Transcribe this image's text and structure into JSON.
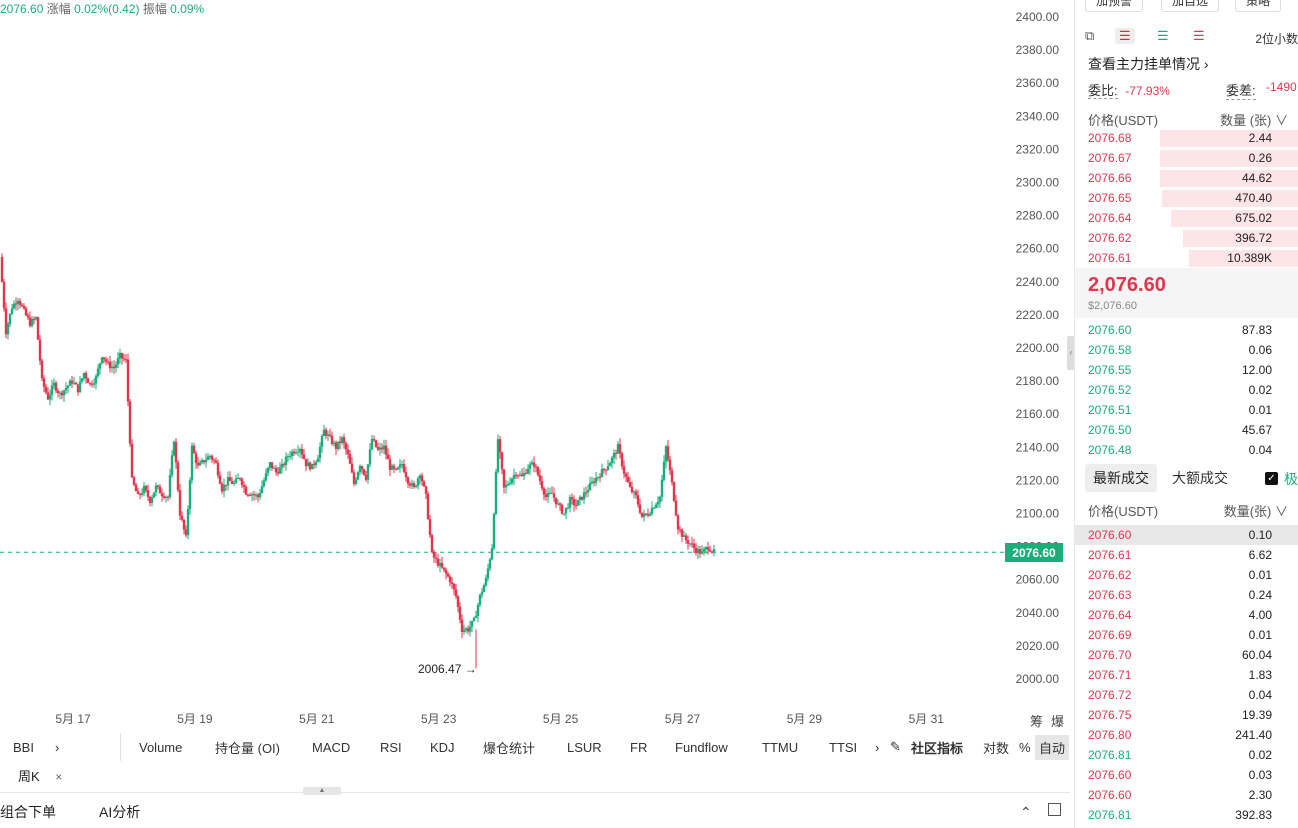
{
  "header": {
    "last_price": "2076.60",
    "change_label": "涨幅",
    "change_value": "0.02%(0.42)",
    "amp_label": "振幅",
    "amp_value": "0.09%"
  },
  "chart": {
    "current_price_tag": "2076.60",
    "low_label": "2006.47 →",
    "chip_flags": "筹爆"
  },
  "chart_data": {
    "type": "candlestick",
    "y_ticks": [
      "2400.00",
      "2380.00",
      "2360.00",
      "2340.00",
      "2320.00",
      "2300.00",
      "2280.00",
      "2260.00",
      "2240.00",
      "2220.00",
      "2200.00",
      "2180.00",
      "2160.00",
      "2140.00",
      "2120.00",
      "2100.00",
      "2080.00",
      "2060.00",
      "2040.00",
      "2020.00",
      "2000.00"
    ],
    "ylim": [
      2000,
      2400
    ],
    "x_ticks": [
      "5月 17",
      "5月 19",
      "5月 21",
      "5月 23",
      "5月 25",
      "5月 27",
      "5月 29",
      "5月 31"
    ],
    "current_price": 2076.6,
    "low": 2006.47,
    "close_path": [
      2255,
      2210,
      2225,
      2230,
      2222,
      2215,
      2218,
      2180,
      2170,
      2178,
      2172,
      2176,
      2180,
      2175,
      2185,
      2178,
      2182,
      2196,
      2190,
      2188,
      2195,
      2192,
      2120,
      2110,
      2115,
      2108,
      2116,
      2112,
      2110,
      2145,
      2100,
      2085,
      2140,
      2128,
      2132,
      2135,
      2130,
      2115,
      2120,
      2118,
      2122,
      2113,
      2112,
      2110,
      2120,
      2130,
      2125,
      2128,
      2135,
      2138,
      2140,
      2130,
      2128,
      2135,
      2150,
      2145,
      2140,
      2145,
      2135,
      2118,
      2130,
      2122,
      2145,
      2138,
      2140,
      2128,
      2125,
      2130,
      2120,
      2115,
      2125,
      2110,
      2075,
      2070,
      2065,
      2060,
      2050,
      2030,
      2030,
      2035,
      2050,
      2060,
      2080,
      2145,
      2115,
      2120,
      2125,
      2122,
      2128,
      2130,
      2120,
      2110,
      2112,
      2105,
      2100,
      2108,
      2105,
      2110,
      2115,
      2120,
      2124,
      2128,
      2133,
      2140,
      2125,
      2115,
      2110,
      2098,
      2100,
      2105,
      2110,
      2140,
      2118,
      2092,
      2085,
      2082,
      2078,
      2076,
      2080,
      2076.6
    ]
  },
  "indicators": [
    "BBI",
    "Volume",
    "持仓量 (OI)",
    "MACD",
    "RSI",
    "KDJ",
    "爆仓统计",
    "LSUR",
    "FR",
    "Fundflow",
    "TTMU",
    "TTSI"
  ],
  "indicator_extras": {
    "more": "›",
    "community": "社区指标",
    "log": "对数",
    "pct": "%",
    "auto": "自动"
  },
  "period": {
    "label": "周K",
    "close": "×"
  },
  "bottom_tabs": {
    "combo_order": "组合下单",
    "ai_analysis": "AI分析"
  },
  "right_panel": {
    "top_buttons": [
      "加预警",
      "加自选",
      "策略"
    ],
    "decimals": "2位小数",
    "view_main": "查看主力挂单情况 ›",
    "ratio_label": "委比:",
    "ratio_value": "-77.93%",
    "diff_label": "委差:",
    "diff_value": "-1490",
    "book_header_price": "价格(USDT)",
    "book_header_qty": "数量 (张) ∨",
    "asks": [
      {
        "price": "2076.68",
        "qty": "2.44",
        "depth": 0.62
      },
      {
        "price": "2076.67",
        "qty": "0.26",
        "depth": 0.62
      },
      {
        "price": "2076.66",
        "qty": "44.62",
        "depth": 0.62
      },
      {
        "price": "2076.65",
        "qty": "470.40",
        "depth": 0.61
      },
      {
        "price": "2076.64",
        "qty": "675.02",
        "depth": 0.57
      },
      {
        "price": "2076.62",
        "qty": "396.72",
        "depth": 0.52
      },
      {
        "price": "2076.61",
        "qty": "10.389K",
        "depth": 0.49
      }
    ],
    "mid_price": "2,076.60",
    "mid_usd": "$2,076.60",
    "bids": [
      {
        "price": "2076.60",
        "qty": "87.83"
      },
      {
        "price": "2076.58",
        "qty": "0.06"
      },
      {
        "price": "2076.55",
        "qty": "12.00"
      },
      {
        "price": "2076.52",
        "qty": "0.02"
      },
      {
        "price": "2076.51",
        "qty": "0.01"
      },
      {
        "price": "2076.50",
        "qty": "45.67"
      },
      {
        "price": "2076.48",
        "qty": "0.04"
      }
    ],
    "trade_tab_latest": "最新成交",
    "trade_tab_large": "大额成交",
    "trade_check": "✓",
    "trade_extra": "极",
    "trade_header_price": "价格(USDT)",
    "trade_header_qty": "数量(张) ∨",
    "trades": [
      {
        "price": "2076.60",
        "qty": "0.10",
        "side": "red",
        "hl": true
      },
      {
        "price": "2076.61",
        "qty": "6.62",
        "side": "red"
      },
      {
        "price": "2076.62",
        "qty": "0.01",
        "side": "red"
      },
      {
        "price": "2076.63",
        "qty": "0.24",
        "side": "red"
      },
      {
        "price": "2076.64",
        "qty": "4.00",
        "side": "red"
      },
      {
        "price": "2076.69",
        "qty": "0.01",
        "side": "red"
      },
      {
        "price": "2076.70",
        "qty": "60.04",
        "side": "red"
      },
      {
        "price": "2076.71",
        "qty": "1.83",
        "side": "red"
      },
      {
        "price": "2076.72",
        "qty": "0.04",
        "side": "red"
      },
      {
        "price": "2076.75",
        "qty": "19.39",
        "side": "red"
      },
      {
        "price": "2076.80",
        "qty": "241.40",
        "side": "red"
      },
      {
        "price": "2076.81",
        "qty": "0.02",
        "side": "green"
      },
      {
        "price": "2076.60",
        "qty": "0.03",
        "side": "red"
      },
      {
        "price": "2076.60",
        "qty": "2.30",
        "side": "red"
      },
      {
        "price": "2076.81",
        "qty": "392.83",
        "side": "green"
      }
    ]
  },
  "colors": {
    "up": "#1aae7a",
    "down": "#e0374f"
  }
}
